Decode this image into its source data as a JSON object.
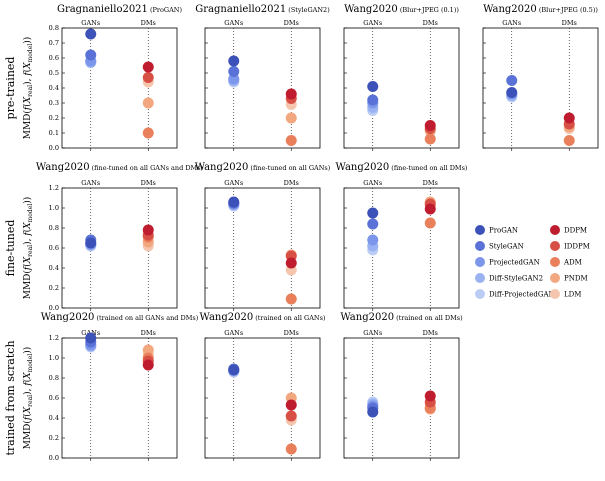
{
  "legend": {
    "gans": [
      {
        "name": "ProGAN",
        "color": "#3d52b8"
      },
      {
        "name": "StyleGAN",
        "color": "#5a72d8"
      },
      {
        "name": "ProjectedGAN",
        "color": "#7b96ea"
      },
      {
        "name": "Diff-StyleGAN2",
        "color": "#9ab2f2"
      },
      {
        "name": "Diff-ProjectedGAN",
        "color": "#bccdf5"
      }
    ],
    "dms": [
      {
        "name": "DDPM",
        "color": "#bf1d2f"
      },
      {
        "name": "IDDPM",
        "color": "#d85045"
      },
      {
        "name": "ADM",
        "color": "#ea805b"
      },
      {
        "name": "PNDM",
        "color": "#f2a77f"
      },
      {
        "name": "LDM",
        "color": "#f5c6ad"
      }
    ]
  },
  "row_labels": [
    "pre-trained",
    "fine-tuned",
    "trained from scratch"
  ],
  "ylabel_text": "MMD",
  "category_labels": {
    "gans": "GANs",
    "dms": "DMs"
  },
  "chart_data": [
    {
      "type": "scatter",
      "row": 0,
      "col": 0,
      "title_main": "Gragnaniello2021",
      "title_sub": "(ProGAN)",
      "ylim": [
        0,
        0.8
      ],
      "yticks": [
        "0.0",
        "0.1",
        "0.2",
        "0.3",
        "0.4",
        "0.5",
        "0.6",
        "0.7",
        "0.8"
      ],
      "show_yticks": true,
      "gans": [
        0.76,
        0.62,
        0.58,
        0.57,
        0.58
      ],
      "dms": [
        0.54,
        0.47,
        0.1,
        0.3,
        0.44
      ]
    },
    {
      "type": "scatter",
      "row": 0,
      "col": 1,
      "title_main": "Gragnaniello2021",
      "title_sub": "(StyleGAN2)",
      "ylim": [
        0,
        0.8
      ],
      "yticks": [
        "0.0",
        "0.1",
        "0.2",
        "0.3",
        "0.4",
        "0.5",
        "0.6",
        "0.7",
        "0.8"
      ],
      "show_yticks": false,
      "gans": [
        0.58,
        0.51,
        0.46,
        0.45,
        0.44
      ],
      "dms": [
        0.36,
        0.33,
        0.05,
        0.2,
        0.29
      ]
    },
    {
      "type": "scatter",
      "row": 0,
      "col": 2,
      "title_main": "Wang2020",
      "title_sub": "(Blur+JPEG (0.1))",
      "ylim": [
        0,
        0.8
      ],
      "yticks": [
        "0.0",
        "0.1",
        "0.2",
        "0.3",
        "0.4",
        "0.5",
        "0.6",
        "0.7",
        "0.8"
      ],
      "show_yticks": false,
      "gans": [
        0.41,
        0.32,
        0.3,
        0.27,
        0.25
      ],
      "dms": [
        0.15,
        0.13,
        0.06,
        0.12,
        0.11
      ]
    },
    {
      "type": "scatter",
      "row": 0,
      "col": 3,
      "title_main": "Wang2020",
      "title_sub": "(Blur+JPEG (0.5))",
      "ylim": [
        0,
        0.8
      ],
      "yticks": [
        "0.0",
        "0.1",
        "0.2",
        "0.3",
        "0.4",
        "0.5",
        "0.6",
        "0.7",
        "0.8"
      ],
      "show_yticks": false,
      "gans": [
        0.37,
        0.45,
        0.36,
        0.35,
        0.34
      ],
      "dms": [
        0.2,
        0.16,
        0.05,
        0.14,
        0.13
      ]
    },
    {
      "type": "scatter",
      "row": 1,
      "col": 0,
      "title_main": "Wang2020",
      "title_sub": "(fine-tuned on all GANs and DMs)",
      "ylim": [
        0,
        1.2
      ],
      "yticks": [
        "0.0",
        "0.2",
        "0.4",
        "0.6",
        "0.8",
        "1.0",
        "1.2"
      ],
      "show_yticks": true,
      "gans": [
        0.65,
        0.68,
        0.64,
        0.63,
        0.62
      ],
      "dms": [
        0.78,
        0.73,
        0.71,
        0.66,
        0.62
      ]
    },
    {
      "type": "scatter",
      "row": 1,
      "col": 1,
      "title_main": "Wang2020",
      "title_sub": "(fine-tuned on all GANs)",
      "ylim": [
        0,
        1.2
      ],
      "yticks": [
        "0.0",
        "0.2",
        "0.4",
        "0.6",
        "0.8",
        "1.0",
        "1.2"
      ],
      "show_yticks": false,
      "gans": [
        1.06,
        1.05,
        1.04,
        1.03,
        1.02
      ],
      "dms": [
        0.45,
        0.52,
        0.09,
        0.53,
        0.38
      ]
    },
    {
      "type": "scatter",
      "row": 1,
      "col": 2,
      "title_main": "Wang2020",
      "title_sub": "(fine-tuned on all DMs)",
      "ylim": [
        0,
        1.2
      ],
      "yticks": [
        "0.0",
        "0.2",
        "0.4",
        "0.6",
        "0.8",
        "1.0",
        "1.2"
      ],
      "show_yticks": false,
      "gans": [
        0.95,
        0.84,
        0.68,
        0.62,
        0.58
      ],
      "dms": [
        0.99,
        1.04,
        0.85,
        1.06,
        1.02
      ]
    },
    {
      "type": "scatter",
      "row": 2,
      "col": 0,
      "title_main": "Wang2020",
      "title_sub": "(trained on all GANs and DMs)",
      "ylim": [
        0,
        1.2
      ],
      "yticks": [
        "0.0",
        "0.2",
        "0.4",
        "0.6",
        "0.8",
        "1.0",
        "1.2"
      ],
      "show_yticks": true,
      "gans": [
        1.2,
        1.16,
        1.13,
        1.12,
        1.11
      ],
      "dms": [
        0.93,
        0.97,
        1.0,
        1.08,
        1.04
      ]
    },
    {
      "type": "scatter",
      "row": 2,
      "col": 1,
      "title_main": "Wang2020",
      "title_sub": "(trained on all GANs)",
      "ylim": [
        0,
        1.2
      ],
      "yticks": [
        "0.0",
        "0.2",
        "0.4",
        "0.6",
        "0.8",
        "1.0",
        "1.2"
      ],
      "show_yticks": false,
      "gans": [
        0.88,
        0.89,
        0.88,
        0.87,
        0.86
      ],
      "dms": [
        0.53,
        0.42,
        0.09,
        0.6,
        0.38
      ]
    },
    {
      "type": "scatter",
      "row": 2,
      "col": 2,
      "title_main": "Wang2020",
      "title_sub": "(trained on all DMs)",
      "ylim": [
        0,
        1.2
      ],
      "yticks": [
        "0.0",
        "0.2",
        "0.4",
        "0.6",
        "0.8",
        "1.0",
        "1.2"
      ],
      "show_yticks": false,
      "gans": [
        0.46,
        0.5,
        0.52,
        0.54,
        0.56
      ],
      "dms": [
        0.62,
        0.56,
        0.5,
        0.49,
        0.53
      ]
    }
  ]
}
